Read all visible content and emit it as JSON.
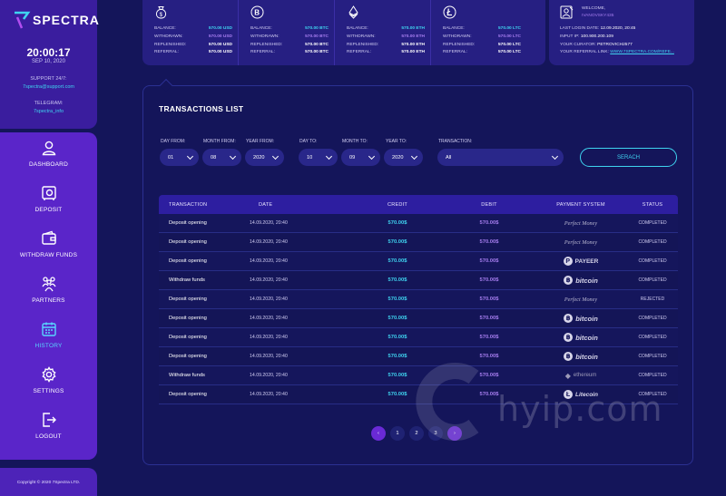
{
  "brand": {
    "name": "SPECTRA"
  },
  "clock": {
    "time": "20:00:17",
    "date": "SEP 10, 2020"
  },
  "support": {
    "label": "SUPPORT 24/7:",
    "email": "7spectra@support.com",
    "telegram_label": "TELEGRAM:",
    "telegram_handle": "7spectra_info"
  },
  "sidebar": {
    "items": [
      {
        "label": "DASHBOARD",
        "icon": "user-icon"
      },
      {
        "label": "DEPOSIT",
        "icon": "safe-icon"
      },
      {
        "label": "WITHDRAW FUNDS",
        "icon": "wallet-icon"
      },
      {
        "label": "PARTNERS",
        "icon": "partners-icon"
      },
      {
        "label": "HISTORY",
        "icon": "calendar-icon",
        "active": true
      },
      {
        "label": "SETTINGS",
        "icon": "gear-icon"
      },
      {
        "label": "LOGOUT",
        "icon": "logout-icon"
      }
    ],
    "copyright": "Copyright © 2020 7Spectra LTD."
  },
  "stats": [
    {
      "icon": "dollar-bag-icon",
      "balance_label": "BALANCE:",
      "balance": "570.00 USD",
      "withdrawn_label": "WITHDRAWN:",
      "withdrawn": "570.00 USD",
      "replenished_label": "REPLENISHED:",
      "replenished": "570.00 USD",
      "referral_label": "REFERRAL:",
      "referral": "570.00 USD"
    },
    {
      "icon": "bitcoin-icon",
      "balance_label": "BALANCE:",
      "balance": "570.00 BTC",
      "withdrawn_label": "WITHDRAWN:",
      "withdrawn": "570.00 BTC",
      "replenished_label": "REPLENISHED:",
      "replenished": "570.00 BTC",
      "referral_label": "REFERRAL:",
      "referral": "570.00 BTC"
    },
    {
      "icon": "ethereum-icon",
      "balance_label": "BALANCE:",
      "balance": "570.00 ETH",
      "withdrawn_label": "WITHDRAWN:",
      "withdrawn": "570.00 ETH",
      "replenished_label": "REPLENISHED:",
      "replenished": "570.00 ETH",
      "referral_label": "REFERRAL:",
      "referral": "570.00 ETH"
    },
    {
      "icon": "litecoin-icon",
      "balance_label": "BALANCE:",
      "balance": "570.00 LTC",
      "withdrawn_label": "WITHDRAWN:",
      "withdrawn": "570.00 LTC",
      "replenished_label": "REPLENISHED:",
      "replenished": "570.00 LTC",
      "referral_label": "REFERRAL:",
      "referral": "570.00 LTC"
    }
  ],
  "user": {
    "welcome": "WELCOME,",
    "username": "IVANOVSKY435",
    "last_login_label": "LAST LOGIN DATE:",
    "last_login": "12.09.2020, 20:45",
    "ip_label": "INPUT IP:",
    "ip": "100.900.200.109",
    "curator_label": "YOUR CURATOR:",
    "curator": "PETROVICH2577",
    "ref_label": "YOUR REFERRAL LINK:",
    "ref_link": "WWW.7SPECTRA.COM/REFE..."
  },
  "transactions": {
    "title": "TRANSACTIONS LIST",
    "filters": {
      "day_from_label": "DAY FROM:",
      "day_from": "01",
      "month_from_label": "MONTH FROM:",
      "month_from": "08",
      "year_from_label": "YEAR FROM:",
      "year_from": "2020",
      "day_to_label": "DAY TO:",
      "day_to": "10",
      "month_to_label": "MONTH TO:",
      "month_to": "09",
      "year_to_label": "YEAR TO:",
      "year_to": "2020",
      "transaction_label": "TRANSACTION:",
      "transaction": "All",
      "search_label": "SERACH"
    },
    "columns": [
      "TRANSACTION",
      "DATE",
      "CREDIT",
      "DEBIT",
      "PAYMENT SYSTEM",
      "STATUS"
    ],
    "rows": [
      {
        "type": "Deposit opening",
        "date": "14.09.2020, 20:40",
        "credit": "570.00$",
        "debit": "570.00$",
        "system": "Perfect Money",
        "system_kind": "pm",
        "status": "COMPLETED"
      },
      {
        "type": "Deposit opening",
        "date": "14.09.2020, 20:40",
        "credit": "570.00$",
        "debit": "570.00$",
        "system": "Perfect Money",
        "system_kind": "pm",
        "status": "COMPLETED"
      },
      {
        "type": "Deposit opening",
        "date": "14.09.2020, 20:40",
        "credit": "570.00$",
        "debit": "570.00$",
        "system": "PAYEER",
        "system_kind": "payeer",
        "status": "COMPLETED"
      },
      {
        "type": "Withdraw funds",
        "date": "14.09.2020, 20:40",
        "credit": "570.00$",
        "debit": "570.00$",
        "system": "bitcoin",
        "system_kind": "btc",
        "status": "COMPLETED"
      },
      {
        "type": "Deposit opening",
        "date": "14.09.2020, 20:40",
        "credit": "570.00$",
        "debit": "570.00$",
        "system": "Perfect Money",
        "system_kind": "pm",
        "status": "REJECTED"
      },
      {
        "type": "Deposit opening",
        "date": "14.09.2020, 20:40",
        "credit": "570.00$",
        "debit": "570.00$",
        "system": "bitcoin",
        "system_kind": "btc",
        "status": "COMPLETED"
      },
      {
        "type": "Deposit opening",
        "date": "14.09.2020, 20:40",
        "credit": "570.00$",
        "debit": "570.00$",
        "system": "bitcoin",
        "system_kind": "btc",
        "status": "COMPLETED"
      },
      {
        "type": "Deposit opening",
        "date": "14.09.2020, 20:40",
        "credit": "570.00$",
        "debit": "570.00$",
        "system": "bitcoin",
        "system_kind": "btc",
        "status": "COMPLETED"
      },
      {
        "type": "Withdraw funds",
        "date": "14.09.2020, 20:40",
        "credit": "570.00$",
        "debit": "570.00$",
        "system": "ethereum",
        "system_kind": "eth",
        "status": "COMPLETED"
      },
      {
        "type": "Deposit opening",
        "date": "14.09.2020, 20:40",
        "credit": "570.00$",
        "debit": "570.00$",
        "system": "Litecoin",
        "system_kind": "ltc",
        "status": "COMPLETED"
      }
    ],
    "pagination": {
      "prev": "‹",
      "pages": [
        "1",
        "2",
        "3"
      ],
      "next": "›"
    }
  },
  "watermark": {
    "text": "hyip.com"
  },
  "colors": {
    "accent_cyan": "#3fd4f0",
    "accent_violet": "#a77ef0",
    "sidebar": "#5a25c9",
    "background": "#14155a"
  }
}
